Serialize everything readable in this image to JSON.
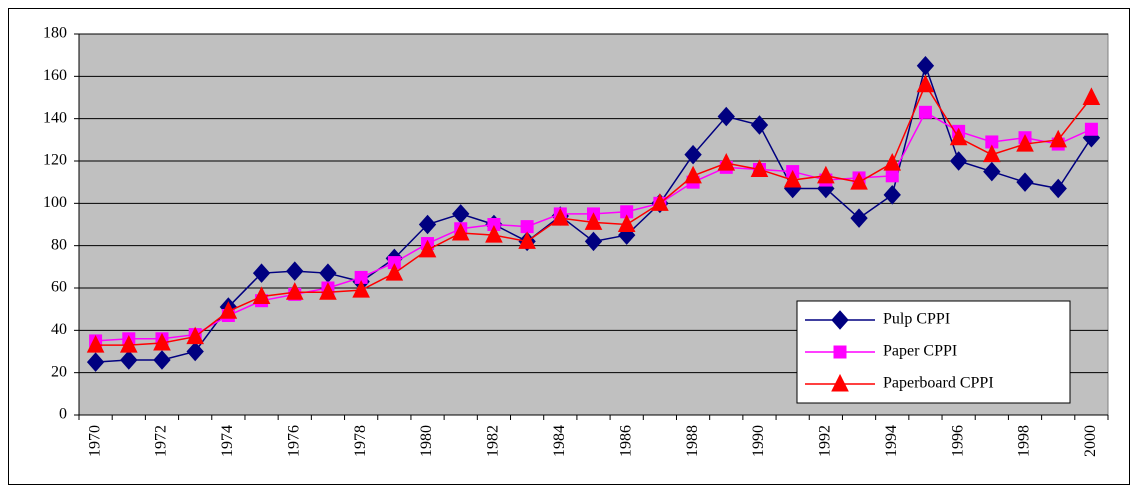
{
  "chart_data": {
    "type": "line",
    "categories": [
      "1970",
      null,
      "1972",
      null,
      "1974",
      null,
      "1976",
      null,
      "1978",
      null,
      "1980",
      null,
      "1982",
      null,
      "1984",
      null,
      "1986",
      null,
      "1988",
      null,
      "1990",
      null,
      "1992",
      null,
      "1994",
      null,
      "1996",
      null,
      "1998",
      null,
      "2000"
    ],
    "series": [
      {
        "name": "Pulp CPPI",
        "color": "#000080",
        "marker": "diamond",
        "values": [
          25,
          26,
          26,
          30,
          51,
          67,
          68,
          67,
          63,
          74,
          90,
          95,
          90,
          82,
          94,
          82,
          85,
          100,
          123,
          141,
          137,
          107,
          107,
          93,
          104,
          165,
          120,
          115,
          110,
          107,
          131
        ]
      },
      {
        "name": "Paper CPPI",
        "color": "#ff00ff",
        "marker": "square",
        "values": [
          35,
          36,
          36,
          38,
          47,
          54,
          57,
          60,
          65,
          72,
          81,
          88,
          90,
          89,
          95,
          95,
          96,
          100,
          110,
          117,
          116,
          115,
          111,
          112,
          113,
          143,
          134,
          129,
          131,
          128,
          135
        ]
      },
      {
        "name": "Paperboard CPPI",
        "color": "#ff0000",
        "marker": "triangle",
        "values": [
          33,
          33,
          34,
          37,
          49,
          56,
          58,
          58,
          59,
          67,
          78,
          86,
          85,
          82,
          93,
          91,
          90,
          100,
          113,
          119,
          116,
          111,
          113,
          110,
          119,
          156,
          131,
          123,
          128,
          130,
          150
        ]
      }
    ],
    "ylim": [
      0,
      180
    ],
    "yticks": [
      0,
      20,
      40,
      60,
      80,
      100,
      120,
      140,
      160,
      180
    ],
    "grid": true,
    "legend": "lower right"
  }
}
